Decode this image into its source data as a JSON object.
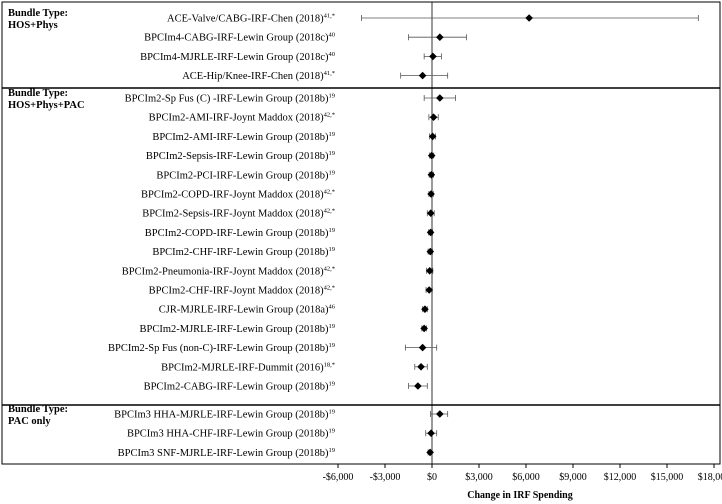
{
  "chart_data": {
    "type": "forest",
    "xlabel": "Change in IRF Spending",
    "xlim": [
      -6000,
      18000
    ],
    "xticks": [
      -6000,
      -3000,
      0,
      3000,
      6000,
      9000,
      12000,
      15000,
      18000
    ],
    "xtick_labels": [
      "-$6,000",
      "-$3,000",
      "$0",
      "$3,000",
      "$6,000",
      "$9,000",
      "$12,000",
      "$15,000",
      "$18,000"
    ],
    "groups": [
      {
        "label_line1": "Bundle Type:",
        "label_line2": "HOS+Phys",
        "rows": [
          {
            "label": "ACE-Valve/CABG-IRF-Chen (2018)",
            "sup": "41,*",
            "est": 6200,
            "lo": -4500,
            "hi": 17000
          },
          {
            "label": "BPCIm4-CABG-IRF-Lewin Group (2018c)",
            "sup": "40",
            "est": 500,
            "lo": -1500,
            "hi": 2200
          },
          {
            "label": "BPCIm4-MJRLE-IRF-Lewin Group (2018c)",
            "sup": "40",
            "est": 60,
            "lo": -500,
            "hi": 600
          },
          {
            "label": "ACE-Hip/Knee-IRF-Chen (2018)",
            "sup": "41,*",
            "est": -600,
            "lo": -2000,
            "hi": 1000
          }
        ]
      },
      {
        "label_line1": "Bundle Type:",
        "label_line2": "HOS+Phys+PAC",
        "rows": [
          {
            "label": "BPCIm2-Sp Fus (C) -IRF-Lewin Group (2018b)",
            "sup": "19",
            "est": 500,
            "lo": -500,
            "hi": 1500
          },
          {
            "label": "BPCIm2-AMI-IRF-Joynt Maddox (2018)",
            "sup": "42,*",
            "est": 100,
            "lo": -200,
            "hi": 400
          },
          {
            "label": "BPCIm2-AMI-IRF-Lewin Group (2018b)",
            "sup": "19",
            "est": 40,
            "lo": -150,
            "hi": 230
          },
          {
            "label": "BPCIm2-Sepsis-IRF-Lewin Group (2018b)",
            "sup": "19",
            "est": -20,
            "lo": -150,
            "hi": 110
          },
          {
            "label": "BPCIm2-PCI-IRF-Lewin Group (2018b)",
            "sup": "19",
            "est": -40,
            "lo": -180,
            "hi": 100
          },
          {
            "label": "BPCIm2-COPD-IRF-Joynt Maddox (2018)",
            "sup": "42,*",
            "est": -60,
            "lo": -200,
            "hi": 80
          },
          {
            "label": "BPCIm2-Sepsis-IRF-Joynt Maddox (2018)",
            "sup": "42,*",
            "est": -80,
            "lo": -300,
            "hi": 140
          },
          {
            "label": "BPCIm2-COPD-IRF-Lewin Group (2018b)",
            "sup": "19",
            "est": -90,
            "lo": -220,
            "hi": 40
          },
          {
            "label": "BPCIm2-CHF-IRF-Lewin Group (2018b)",
            "sup": "19",
            "est": -110,
            "lo": -250,
            "hi": 30
          },
          {
            "label": "BPCIm2-Pneumonia-IRF-Joynt Maddox (2018)",
            "sup": "42,*",
            "est": -150,
            "lo": -350,
            "hi": 50
          },
          {
            "label": "BPCIm2-CHF-IRF-Joynt Maddox (2018)",
            "sup": "42,*",
            "est": -180,
            "lo": -380,
            "hi": 20
          },
          {
            "label": "CJR-MJRLE-IRF-Lewin Group (2018a)",
            "sup": "46",
            "est": -450,
            "lo": -600,
            "hi": -300
          },
          {
            "label": "BPCIm2-MJRLE-IRF-Lewin Group (2018b)",
            "sup": "19",
            "est": -500,
            "lo": -650,
            "hi": -350
          },
          {
            "label": "BPCIm2-Sp Fus (non-C)-IRF-Lewin Group (2018b)",
            "sup": "19",
            "est": -600,
            "lo": -1700,
            "hi": 300
          },
          {
            "label": "BPCIm2-MJRLE-IRF-Dummit (2016)",
            "sup": "18,*",
            "est": -700,
            "lo": -1100,
            "hi": -300
          },
          {
            "label": "BPCIm2-CABG-IRF-Lewin Group (2018b)",
            "sup": "19",
            "est": -900,
            "lo": -1500,
            "hi": -300
          }
        ]
      },
      {
        "label_line1": "Bundle Type:",
        "label_line2": "PAC only",
        "rows": [
          {
            "label": "BPCIm3 HHA-MJRLE-IRF-Lewin Group (2018b)",
            "sup": "19",
            "est": 500,
            "lo": -100,
            "hi": 1000
          },
          {
            "label": "BPCIm3 HHA-CHF-IRF-Lewin Group (2018b)",
            "sup": "19",
            "est": -60,
            "lo": -400,
            "hi": 300
          },
          {
            "label": "BPCIm3 SNF-MJRLE-IRF-Lewin Group (2018b)",
            "sup": "19",
            "est": -120,
            "lo": -250,
            "hi": 10
          }
        ]
      }
    ]
  }
}
